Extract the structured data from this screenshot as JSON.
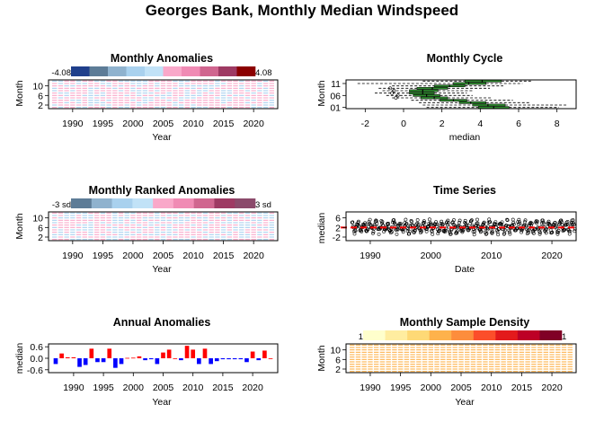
{
  "main_title": "Georges Bank, Monthly Median Windspeed",
  "chart_data": [
    {
      "id": "monthly-anomalies",
      "type": "heatmap",
      "title": "Monthly Anomalies",
      "xlabel": "Year",
      "ylabel": "Month",
      "xlim": [
        1986,
        2024
      ],
      "ylim": [
        0.5,
        12.5
      ],
      "x_ticks": [
        "1990",
        "1995",
        "2000",
        "2005",
        "2010",
        "2015",
        "2020"
      ],
      "y_ticks": [
        "2",
        "6",
        "10"
      ],
      "legend": {
        "position": "top",
        "min_label": "-4.08",
        "max_label": "4.08",
        "colors": [
          "#1f3f8b",
          "#5d7c97",
          "#8fb2ce",
          "#a9d1ee",
          "#c1e2f7",
          "#f9a8c9",
          "#f08bb4",
          "#d0668f",
          "#9e3a63",
          "#8b0000"
        ]
      },
      "dash_colors": [
        "#f9a8c9",
        "#a9d1ee"
      ]
    },
    {
      "id": "monthly-cycle",
      "type": "box",
      "title": "Monthly Cycle",
      "xlabel": "median",
      "ylabel": "Month",
      "xlim": [
        -3,
        9
      ],
      "x_ticks": [
        "-2",
        "0",
        "2",
        "4",
        "6",
        "8"
      ],
      "y_ticks": [
        "01",
        "06",
        "11"
      ],
      "months": [
        {
          "month": 1,
          "q1": 3.9,
          "median": 4.7,
          "q3": 5.5,
          "whisker_low": 1.2,
          "whisker_high": 8.1
        },
        {
          "month": 2,
          "q1": 3.6,
          "median": 4.4,
          "q3": 5.3,
          "whisker_low": 1.0,
          "whisker_high": 8.5
        },
        {
          "month": 3,
          "q1": 2.9,
          "median": 3.5,
          "q3": 4.3,
          "whisker_low": 0.8,
          "whisker_high": 6.6
        },
        {
          "month": 4,
          "q1": 1.9,
          "median": 2.6,
          "q3": 3.3,
          "whisker_low": 0.4,
          "whisker_high": 5.7
        },
        {
          "month": 5,
          "q1": 0.9,
          "median": 1.6,
          "q3": 2.3,
          "whisker_low": -0.6,
          "whisker_high": 4.6
        },
        {
          "month": 6,
          "q1": 0.5,
          "median": 1.2,
          "q3": 1.9,
          "whisker_low": -0.9,
          "whisker_high": 3.6
        },
        {
          "month": 7,
          "q1": 0.3,
          "median": 1.0,
          "q3": 1.6,
          "whisker_low": -1.5,
          "whisker_high": 3.3
        },
        {
          "month": 8,
          "q1": 0.3,
          "median": 1.0,
          "q3": 1.8,
          "whisker_low": -1.1,
          "whisker_high": 3.6
        },
        {
          "month": 9,
          "q1": 0.7,
          "median": 1.5,
          "q3": 2.3,
          "whisker_low": -1.3,
          "whisker_high": 4.5
        },
        {
          "month": 10,
          "q1": 1.6,
          "median": 2.4,
          "q3": 3.2,
          "whisker_low": -0.6,
          "whisker_high": 5.2
        },
        {
          "month": 11,
          "q1": 2.6,
          "median": 3.4,
          "q3": 4.3,
          "whisker_low": -2.4,
          "whisker_high": 6.2
        },
        {
          "month": 12,
          "q1": 3.2,
          "median": 4.1,
          "q3": 5.1,
          "whisker_low": 1.0,
          "whisker_high": 6.7
        }
      ]
    },
    {
      "id": "monthly-ranked-anomalies",
      "type": "heatmap",
      "title": "Monthly Ranked Anomalies",
      "xlabel": "Year",
      "ylabel": "Month",
      "xlim": [
        1986,
        2024
      ],
      "ylim": [
        0.5,
        12.5
      ],
      "x_ticks": [
        "1990",
        "1995",
        "2000",
        "2005",
        "2010",
        "2015",
        "2020"
      ],
      "y_ticks": [
        "2",
        "6",
        "10"
      ],
      "legend": {
        "position": "top",
        "min_label": "-3 sd",
        "max_label": "3 sd",
        "colors": [
          "#5d7c97",
          "#8fb2ce",
          "#a9d1ee",
          "#c1e2f7",
          "#f9a8c9",
          "#f08bb4",
          "#d0668f",
          "#9e3a63",
          "#8b4a6b"
        ]
      },
      "dash_colors": [
        "#f9a8c9",
        "#a9d1ee"
      ]
    },
    {
      "id": "time-series",
      "type": "scatter",
      "title": "Time Series",
      "xlabel": "Date",
      "ylabel": "median",
      "xlim": [
        1986,
        2024
      ],
      "ylim": [
        -3.5,
        8.5
      ],
      "x_ticks": [
        "1990",
        "2000",
        "2010",
        "2020"
      ],
      "y_ticks": [
        "-2",
        "2",
        "6"
      ],
      "mean_line": 2.0,
      "n_points": 450
    },
    {
      "id": "annual-anomalies",
      "type": "bar",
      "title": "Annual Anomalies",
      "xlabel": "Year",
      "ylabel": "median",
      "ylim": [
        -0.75,
        0.75
      ],
      "x_ticks": [
        "1990",
        "1995",
        "2000",
        "2005",
        "2010",
        "2015",
        "2020"
      ],
      "y_ticks": [
        "-0.6",
        "0.0",
        "0.6"
      ],
      "categories": [
        1987,
        1988,
        1989,
        1990,
        1991,
        1992,
        1993,
        1994,
        1995,
        1996,
        1997,
        1998,
        1999,
        2000,
        2001,
        2002,
        2003,
        2004,
        2005,
        2006,
        2007,
        2008,
        2009,
        2010,
        2011,
        2012,
        2013,
        2014,
        2015,
        2016,
        2017,
        2018,
        2019,
        2020,
        2021,
        2022,
        2023
      ],
      "values": [
        -0.3,
        0.25,
        0.05,
        0.05,
        -0.45,
        -0.35,
        0.5,
        -0.2,
        -0.2,
        0.5,
        -0.5,
        -0.3,
        0.02,
        0.03,
        0.1,
        -0.1,
        -0.05,
        -0.3,
        0.3,
        0.45,
        0.0,
        -0.1,
        0.65,
        0.45,
        -0.3,
        0.5,
        -0.3,
        -0.15,
        -0.05,
        -0.05,
        -0.05,
        -0.05,
        -0.2,
        0.35,
        -0.1,
        0.4,
        0.0
      ],
      "pos_color": "#ff0000",
      "neg_color": "#0000ff"
    },
    {
      "id": "monthly-sample-density",
      "type": "heatmap",
      "title": "Monthly Sample Density",
      "xlabel": "Year",
      "ylabel": "Month",
      "xlim": [
        1986,
        2024
      ],
      "ylim": [
        0.5,
        12.5
      ],
      "x_ticks": [
        "1990",
        "1995",
        "2000",
        "2005",
        "2010",
        "2015",
        "2020"
      ],
      "y_ticks": [
        "2",
        "6",
        "10"
      ],
      "legend": {
        "position": "top",
        "min_label": "1",
        "max_label": "1",
        "colors": [
          "#ffffcc",
          "#ffeda0",
          "#fed976",
          "#feb24c",
          "#fd8d3c",
          "#fc4e2a",
          "#e31a1c",
          "#bd0026",
          "#800026"
        ]
      },
      "dash_colors": [
        "#feb24c"
      ]
    }
  ]
}
